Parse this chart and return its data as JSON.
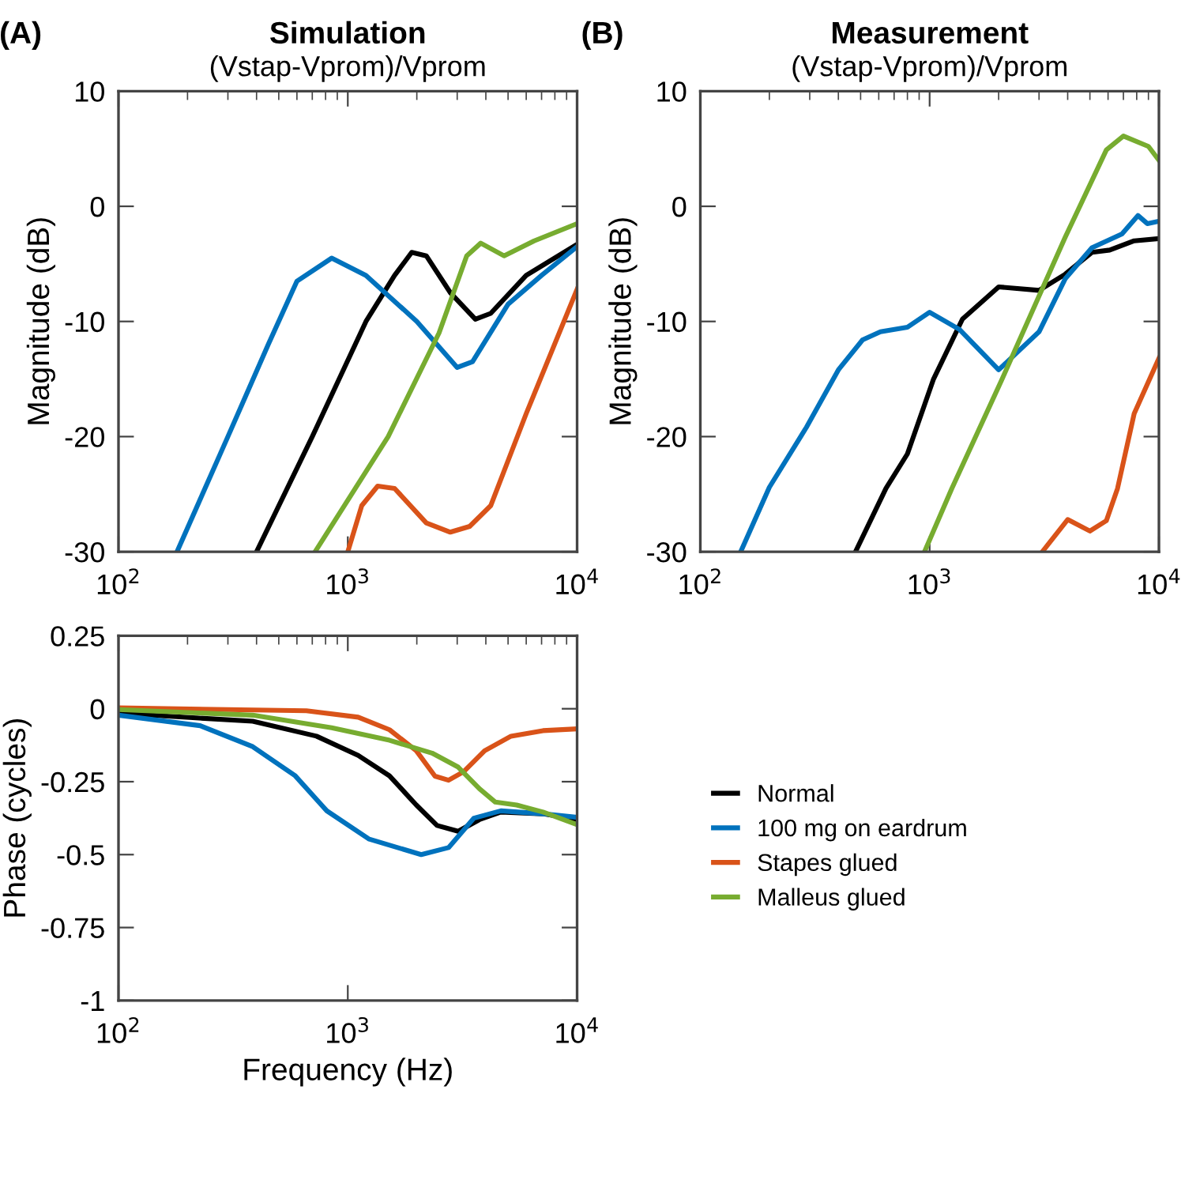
{
  "chart_data": [
    {
      "type": "line",
      "title": "Simulation",
      "subtitle": "(Vstap-Vprom)/Vprom",
      "ylabel": "Magnitude (dB)",
      "annotations": [
        "(A)"
      ],
      "log": "x",
      "xlim": [
        100,
        10000
      ],
      "ylim": [
        -30,
        10
      ],
      "xticks": [
        {
          "value": 100,
          "label": "10$^{2}$"
        },
        {
          "value": 1000,
          "label": "10$^{3}$"
        },
        {
          "value": 10000,
          "label": "10$^{4}$"
        }
      ],
      "yticks": [
        -30,
        -20,
        -10,
        0,
        10
      ],
      "series": [
        {
          "color": "#000000",
          "x": [
            400,
            700,
            1200,
            1600,
            1900,
            2200,
            2800,
            3600,
            4200,
            6000,
            10000
          ],
          "values": [
            -30,
            -20,
            -10,
            -6,
            -4,
            -4.3,
            -7.5,
            -9.8,
            -9.3,
            -6,
            -3.3
          ]
        },
        {
          "color": "#0072bd",
          "x": [
            180,
            300,
            450,
            600,
            850,
            1200,
            2000,
            3000,
            3500,
            5000,
            7000,
            10000
          ],
          "values": [
            -30,
            -20,
            -12,
            -6.5,
            -4.5,
            -6,
            -10,
            -14,
            -13.5,
            -8.5,
            -6,
            -3.5
          ]
        },
        {
          "color": "#d95319",
          "x": [
            1000,
            1150,
            1350,
            1600,
            2200,
            2800,
            3400,
            4200,
            6000,
            10000
          ],
          "values": [
            -30,
            -26,
            -24.3,
            -24.5,
            -27.5,
            -28.3,
            -27.8,
            -26,
            -18,
            -7.2
          ]
        },
        {
          "color": "#77ac30",
          "x": [
            720,
            1500,
            2500,
            3300,
            3800,
            4800,
            6500,
            10000
          ],
          "values": [
            -30,
            -20,
            -11,
            -4.3,
            -3.2,
            -4.3,
            -3,
            -1.5
          ]
        }
      ]
    },
    {
      "type": "line",
      "title": "Measurement",
      "subtitle": "(Vstap-Vprom)/Vprom",
      "ylabel": "Magnitude (dB)",
      "annotations": [
        "(B)"
      ],
      "log": "x",
      "xlim": [
        100,
        10000
      ],
      "ylim": [
        -30,
        10
      ],
      "xticks": [
        {
          "value": 100,
          "label": "10$^{2}$"
        },
        {
          "value": 1000,
          "label": "10$^{3}$"
        },
        {
          "value": 10000,
          "label": "10$^{4}$"
        }
      ],
      "yticks": [
        -30,
        -20,
        -10,
        0,
        10
      ],
      "series": [
        {
          "color": "#000000",
          "x": [
            475,
            645,
            800,
            1040,
            1390,
            2000,
            3000,
            3900,
            5100,
            6100,
            7800,
            10000
          ],
          "values": [
            -30,
            -24.5,
            -21.5,
            -15,
            -9.8,
            -7,
            -7.3,
            -5.9,
            -4,
            -3.8,
            -3,
            -2.8
          ]
        },
        {
          "color": "#0072bd",
          "x": [
            150,
            200,
            290,
            400,
            510,
            610,
            800,
            1000,
            1350,
            2000,
            3000,
            3900,
            5100,
            6900,
            8100,
            8900,
            10000
          ],
          "values": [
            -30,
            -24.4,
            -19.2,
            -14.2,
            -11.6,
            -10.9,
            -10.5,
            -9.2,
            -10.7,
            -14.2,
            -10.9,
            -6.3,
            -3.6,
            -2.4,
            -0.8,
            -1.5,
            -1.3
          ]
        },
        {
          "color": "#d95319",
          "x": [
            3100,
            4000,
            5000,
            5900,
            6600,
            7800,
            10000
          ],
          "values": [
            -30,
            -27.2,
            -28.2,
            -27.3,
            -24.5,
            -18,
            -13.2
          ]
        },
        {
          "color": "#77ac30",
          "x": [
            950,
            1250,
            2060,
            3900,
            5900,
            7000,
            9000,
            10000
          ],
          "values": [
            -30,
            -24.5,
            -15.1,
            -2.7,
            4.9,
            6.1,
            5.2,
            4
          ]
        }
      ]
    },
    {
      "type": "line",
      "xlabel": "Frequency (Hz)",
      "ylabel": "Phase (cycles)",
      "log": "x",
      "legend": "right",
      "xlim": [
        100,
        10000
      ],
      "ylim": [
        -1,
        0.25
      ],
      "xticks": [
        {
          "value": 100,
          "label": "10$^{2}$"
        },
        {
          "value": 1000,
          "label": "10$^{3}$"
        },
        {
          "value": 10000,
          "label": "10$^{4}$"
        }
      ],
      "yticks": [
        -1,
        -0.75,
        -0.5,
        -0.25,
        0,
        0.25
      ],
      "series": [
        {
          "name": "Normal",
          "color": "#000000",
          "x": [
            100,
            385,
            730,
            1110,
            1520,
            1990,
            2450,
            3030,
            3750,
            4650,
            7100,
            10000
          ],
          "values": [
            -0.015,
            -0.043,
            -0.094,
            -0.16,
            -0.23,
            -0.33,
            -0.4,
            -0.42,
            -0.38,
            -0.354,
            -0.36,
            -0.38
          ]
        },
        {
          "name": "100 mg on eardrum",
          "color": "#0072bd",
          "x": [
            100,
            227,
            385,
            590,
            810,
            1240,
            2090,
            2750,
            3550,
            4650,
            7100,
            10000
          ],
          "values": [
            -0.022,
            -0.058,
            -0.13,
            -0.23,
            -0.35,
            -0.447,
            -0.5,
            -0.476,
            -0.375,
            -0.35,
            -0.36,
            -0.372
          ]
        },
        {
          "name": "Stapes glued",
          "color": "#d95319",
          "x": [
            100,
            660,
            1110,
            1520,
            1990,
            2400,
            2750,
            3200,
            3950,
            5150,
            7100,
            10000
          ],
          "values": [
            0.003,
            -0.007,
            -0.029,
            -0.072,
            -0.144,
            -0.231,
            -0.245,
            -0.216,
            -0.144,
            -0.094,
            -0.075,
            -0.069
          ]
        },
        {
          "name": "Malleus glued",
          "color": "#77ac30",
          "x": [
            100,
            385,
            850,
            1520,
            2330,
            3030,
            3750,
            4400,
            5450,
            7100,
            10000
          ],
          "values": [
            -0.003,
            -0.022,
            -0.065,
            -0.108,
            -0.152,
            -0.2,
            -0.274,
            -0.32,
            -0.33,
            -0.354,
            -0.397
          ]
        }
      ]
    }
  ]
}
